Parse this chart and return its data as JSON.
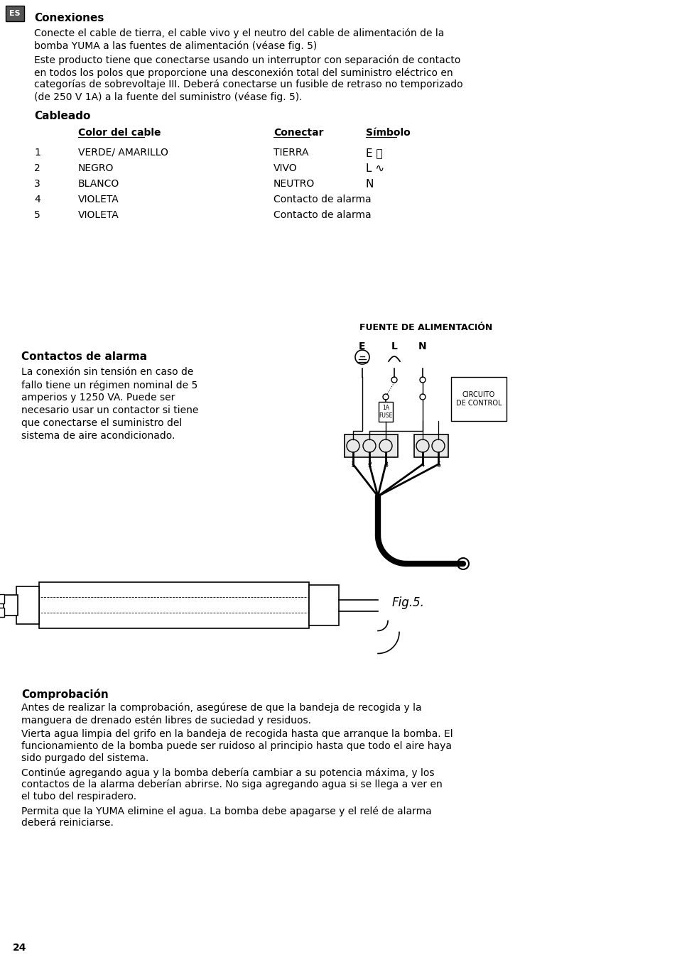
{
  "bg_color": "#ffffff",
  "text_color": "#000000",
  "page_number": "24",
  "lang_label": "ES",
  "section1_title": "Conexiones",
  "section1_para1": "Conecte el cable de tierra, el cable vivo y el neutro del cable de alimentación de la\nbomba YUMA a las fuentes de alimentación (véase fig. 5)",
  "section1_para2": "Este producto tiene que conectarse usando un interruptor con separación de contacto\nen todos los polos que proporcione una desconexión total del suministro eléctrico en\ncategorías de sobrevoltaje III. Deberá conectarse un fusible de retraso no temporizado\n(de 250 V 1A) a la fuente del suministro (véase fig. 5).",
  "cableado_title": "Cableado",
  "col1_header": "Color del cable",
  "col2_header": "Conectar",
  "col3_header": "Símbolo",
  "cable_rows": [
    {
      "num": "1",
      "color": "VERDE/ AMARILLO",
      "conectar": "TIERRA",
      "simbolo": "E ⏚"
    },
    {
      "num": "2",
      "color": "NEGRO",
      "conectar": "VIVO",
      "simbolo": "L ∿"
    },
    {
      "num": "3",
      "color": "BLANCO",
      "conectar": "NEUTRO",
      "simbolo": "N"
    },
    {
      "num": "4",
      "color": "VIOLETA",
      "conectar": "Contacto de alarma",
      "simbolo": ""
    },
    {
      "num": "5",
      "color": "VIOLETA",
      "conectar": "Contacto de alarma",
      "simbolo": ""
    }
  ],
  "alarm_title": "Contactos de alarma",
  "alarm_para": "La conexión sin tensión en caso de\nfallo tiene un régimen nominal de 5\namperios y 1250 VA. Puede ser\nnecesario usar un contactor si tiene\nque conectarse el suministro del\nsistema de aire acondicionado.",
  "fuente_title": "FUENTE DE ALIMENTACIÓN",
  "fig_label": "Fig.5.",
  "section2_title": "Comprobación",
  "section2_para1": "Antes de realizar la comprobación, asegúrese de que la bandeja de recogida y la\nmanguera de drenado estén libres de suciedad y residuos.",
  "section2_para2": "Vierta agua limpia del grifo en la bandeja de recogida hasta que arranque la bomba. El\nfuncionamiento de la bomba puede ser ruidoso al principio hasta que todo el aire haya\nsido purgado del sistema.",
  "section2_para3": "Continúe agregando agua y la bomba debería cambiar a su potencia máxima, y los\ncontactos de la alarma deberían abrirse. No siga agregando agua si se llega a ver en\nel tubo del respiradero.",
  "section2_para4": "Permita que la YUMA elimine el agua. La bomba debe apagarse y el relé de alarma\ndeberá reiniciarse."
}
